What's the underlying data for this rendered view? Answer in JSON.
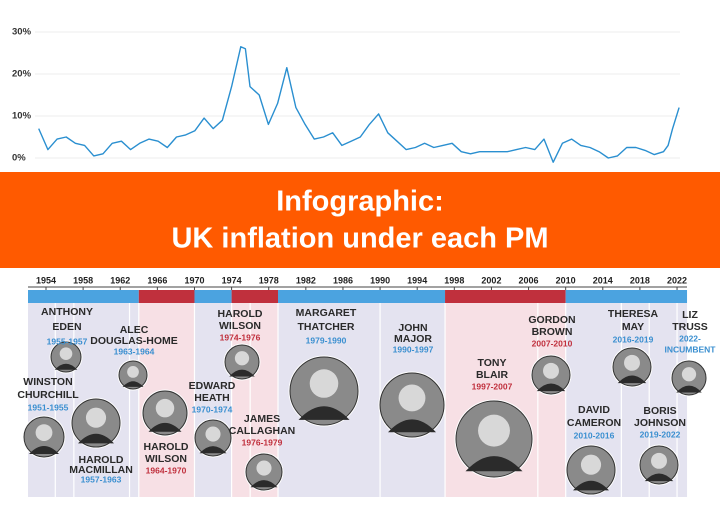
{
  "chart_data": {
    "type": "line",
    "x": [
      1953,
      1954,
      1955,
      1956,
      1957,
      1958,
      1959,
      1960,
      1961,
      1962,
      1963,
      1964,
      1965,
      1966,
      1967,
      1968,
      1969,
      1970,
      1971,
      1972,
      1973,
      1974,
      1975,
      1975.5,
      1976,
      1977,
      1978,
      1979,
      1980,
      1981,
      1982,
      1983,
      1984,
      1985,
      1986,
      1987,
      1988,
      1989,
      1990,
      1991,
      1992,
      1993,
      1994,
      1995,
      1996,
      1997,
      1998,
      1999,
      2000,
      2001,
      2002,
      2003,
      2004,
      2005,
      2006,
      2007,
      2008,
      2009,
      2010,
      2011,
      2012,
      2013,
      2014,
      2015,
      2016,
      2017,
      2018,
      2019,
      2020,
      2021,
      2021.5,
      2022,
      2022.7
    ],
    "series": [
      {
        "color": "#2a8fd0",
        "values": [
          7,
          2,
          4.5,
          5,
          3.5,
          3,
          0.5,
          1,
          3.5,
          4,
          2,
          3.5,
          4.5,
          4,
          2.5,
          5,
          5.5,
          6.5,
          9.5,
          7,
          9,
          17,
          26.5,
          26,
          17,
          15,
          8,
          13,
          21.5,
          12,
          8,
          4.5,
          5,
          6,
          3,
          4,
          5,
          8,
          10.5,
          6,
          4,
          2,
          2.5,
          3.5,
          2.5,
          3,
          3.5,
          1.5,
          1,
          1.5,
          1.5,
          1.5,
          1.5,
          2,
          2.5,
          2,
          4.5,
          -1,
          3.5,
          4.5,
          3,
          2.5,
          1.5,
          0,
          0.5,
          2.5,
          2.5,
          1.8,
          0.8,
          1.5,
          3,
          7,
          12
        ]
      }
    ],
    "xlim": [
      1952.6,
      2022.8
    ],
    "ylim": [
      -2,
      32
    ],
    "yticks": [
      {
        "value": 0,
        "label": "0%"
      },
      {
        "value": 10,
        "label": "10%"
      },
      {
        "value": 20,
        "label": "20%"
      },
      {
        "value": 30,
        "label": "30%"
      }
    ],
    "grid": true
  },
  "banner": {
    "title_line1": "Infographic:",
    "title_line2": "UK inflation under each PM",
    "color": "#ff5a00"
  },
  "timeline": {
    "years": [
      1954,
      1958,
      1962,
      1966,
      1970,
      1974,
      1978,
      1982,
      1986,
      1990,
      1994,
      1998,
      2002,
      2006,
      2010,
      2014,
      2018,
      2022
    ],
    "segments": [
      {
        "start": 1951,
        "end": 1964,
        "color": "#4ba3e0",
        "shade": "#e4e3f0"
      },
      {
        "start": 1964,
        "end": 1970,
        "color": "#c0303d",
        "shade": "#f7e0e5"
      },
      {
        "start": 1970,
        "end": 1974,
        "color": "#4ba3e0",
        "shade": "#e4e3f0"
      },
      {
        "start": 1974,
        "end": 1979,
        "color": "#c0303d",
        "shade": "#f7e0e5"
      },
      {
        "start": 1979,
        "end": 1997,
        "color": "#4ba3e0",
        "shade": "#e4e3f0"
      },
      {
        "start": 1997,
        "end": 2010,
        "color": "#c0303d",
        "shade": "#f7e0e5"
      },
      {
        "start": 2010,
        "end": 2022,
        "color": "#4ba3e0",
        "shade": "#e4e3f0"
      }
    ]
  },
  "pms": [
    {
      "name": [
        "ANTHONY",
        "EDEN"
      ],
      "years": "1955-1957",
      "color": "#3a8fd0"
    },
    {
      "name": [
        "ALEC",
        "DOUGLAS-HOME"
      ],
      "years": "1963-1964",
      "color": "#3a8fd0"
    },
    {
      "name": [
        "WINSTON",
        "CHURCHILL"
      ],
      "years": "1951-1955",
      "color": "#3a8fd0"
    },
    {
      "name": [
        "HAROLD",
        "MACMILLAN"
      ],
      "years": "1957-1963",
      "color": "#3a8fd0"
    },
    {
      "name": [
        "HAROLD",
        "WILSON"
      ],
      "years": "1964-1970",
      "color": "#c0303d"
    },
    {
      "name": [
        "HAROLD",
        "WILSON"
      ],
      "years": "1974-1976",
      "color": "#c0303d"
    },
    {
      "name": [
        "EDWARD",
        "HEATH"
      ],
      "years": "1970-1974",
      "color": "#3a8fd0"
    },
    {
      "name": [
        "JAMES",
        "CALLAGHAN"
      ],
      "years": "1976-1979",
      "color": "#c0303d"
    },
    {
      "name": [
        "MARGARET",
        "THATCHER"
      ],
      "years": "1979-1990",
      "color": "#3a8fd0"
    },
    {
      "name": [
        "JOHN",
        "MAJOR"
      ],
      "years": "1990-1997",
      "color": "#3a8fd0"
    },
    {
      "name": [
        "TONY",
        "BLAIR"
      ],
      "years": "1997-2007",
      "color": "#c0303d"
    },
    {
      "name": [
        "GORDON",
        "BROWN"
      ],
      "years": "2007-2010",
      "color": "#c0303d"
    },
    {
      "name": [
        "DAVID",
        "CAMERON"
      ],
      "years": "2010-2016",
      "color": "#3a8fd0"
    },
    {
      "name": [
        "THERESA",
        "MAY"
      ],
      "years": "2016-2019",
      "color": "#3a8fd0"
    },
    {
      "name": [
        "BORIS",
        "JOHNSON"
      ],
      "years": "2019-2022",
      "color": "#3a8fd0"
    },
    {
      "name": [
        "LIZ",
        "TRUSS"
      ],
      "years": "2022-",
      "status": "INCUMBENT",
      "color": "#3a8fd0"
    }
  ]
}
